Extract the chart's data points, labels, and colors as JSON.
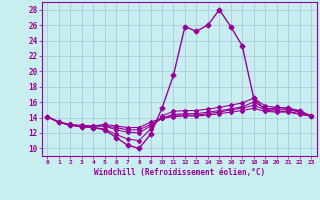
{
  "xlabel": "Windchill (Refroidissement éolien,°C)",
  "background_color": "#c8eef0",
  "grid_color": "#a0c8d8",
  "line_color": "#990099",
  "x_hours": [
    0,
    1,
    2,
    3,
    4,
    5,
    6,
    7,
    8,
    9,
    10,
    11,
    12,
    13,
    14,
    15,
    16,
    17,
    18,
    19,
    20,
    21,
    22,
    23
  ],
  "series": [
    [
      14.1,
      13.4,
      13.0,
      12.8,
      12.7,
      12.4,
      11.4,
      10.4,
      10.0,
      11.8,
      15.2,
      19.5,
      25.8,
      25.2,
      26.0,
      28.0,
      25.8,
      23.3,
      16.5,
      15.0,
      15.3,
      15.2,
      14.8,
      14.2
    ],
    [
      14.1,
      13.4,
      13.0,
      12.8,
      12.7,
      12.5,
      11.8,
      11.2,
      11.0,
      12.5,
      14.2,
      14.8,
      14.9,
      14.9,
      15.1,
      15.3,
      15.6,
      15.9,
      16.5,
      15.5,
      15.3,
      15.2,
      14.9,
      14.2
    ],
    [
      14.1,
      13.4,
      13.0,
      13.0,
      12.9,
      12.9,
      12.4,
      12.1,
      12.0,
      12.9,
      13.9,
      14.4,
      14.5,
      14.5,
      14.7,
      14.9,
      15.1,
      15.4,
      16.0,
      15.2,
      15.0,
      15.0,
      14.7,
      14.2
    ],
    [
      14.1,
      13.4,
      13.1,
      12.9,
      12.9,
      12.9,
      12.7,
      12.4,
      12.4,
      13.1,
      13.9,
      14.3,
      14.3,
      14.3,
      14.5,
      14.7,
      15.0,
      15.2,
      15.6,
      15.0,
      14.8,
      14.8,
      14.5,
      14.2
    ],
    [
      14.1,
      13.4,
      13.1,
      12.9,
      12.9,
      13.1,
      12.9,
      12.7,
      12.7,
      13.4,
      13.9,
      14.1,
      14.2,
      14.2,
      14.3,
      14.5,
      14.7,
      14.9,
      15.2,
      14.8,
      14.7,
      14.7,
      14.4,
      14.2
    ]
  ],
  "ylim": [
    9,
    29
  ],
  "yticks": [
    10,
    12,
    14,
    16,
    18,
    20,
    22,
    24,
    26,
    28
  ],
  "xticks": [
    0,
    1,
    2,
    3,
    4,
    5,
    6,
    7,
    8,
    9,
    10,
    11,
    12,
    13,
    14,
    15,
    16,
    17,
    18,
    19,
    20,
    21,
    22,
    23
  ]
}
